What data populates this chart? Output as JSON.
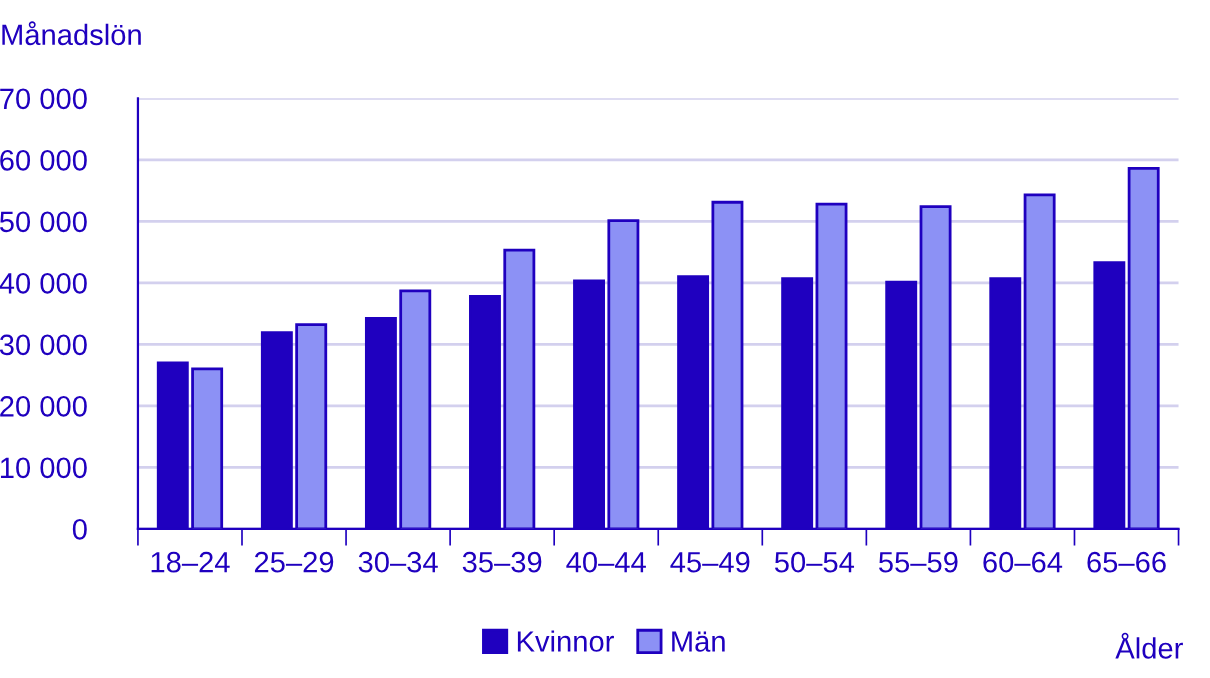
{
  "chart_data": {
    "type": "bar",
    "ylabel": "Månadslön",
    "xlabel": "Ålder",
    "categories": [
      "18–24",
      "25–29",
      "30–34",
      "35–39",
      "40–44",
      "45–49",
      "50–54",
      "55–59",
      "60–64",
      "65–66"
    ],
    "series": [
      {
        "name": "Kvinnor",
        "color": "#1f00bf",
        "values": [
          27000,
          31900,
          34200,
          37800,
          40300,
          41000,
          40700,
          40100,
          40700,
          43300
        ]
      },
      {
        "name": "Män",
        "color": "#8c91f5",
        "values": [
          26000,
          33200,
          38700,
          45300,
          50100,
          53100,
          52800,
          52400,
          54300,
          58600
        ]
      }
    ],
    "ylim": [
      0,
      70000
    ],
    "yticks": [
      {
        "value": 0,
        "label": "0"
      },
      {
        "value": 10000,
        "label": "10 000"
      },
      {
        "value": 20000,
        "label": "20 000"
      },
      {
        "value": 30000,
        "label": "30 000"
      },
      {
        "value": 40000,
        "label": "40 000"
      },
      {
        "value": 50000,
        "label": "50 000"
      },
      {
        "value": 60000,
        "label": "60 000"
      },
      {
        "value": 70000,
        "label": "70 000"
      }
    ],
    "grid": "y",
    "legend": "bottom"
  }
}
